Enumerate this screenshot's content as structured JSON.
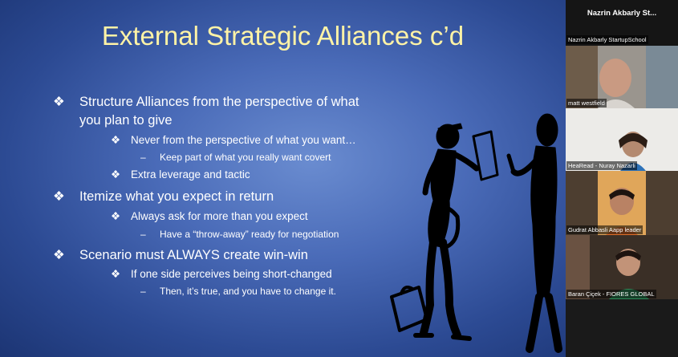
{
  "slide": {
    "title": "External Strategic Alliances c’d",
    "bullets": [
      {
        "level": 1,
        "line1": "Structure Alliances from the perspective of what",
        "line2": "you plan to give"
      },
      {
        "level": 2,
        "text": "Never from the perspective of what you want…"
      },
      {
        "level": 3,
        "text": "Keep part of what you really want covert"
      },
      {
        "level": 2,
        "text": "Extra leverage and tactic"
      },
      {
        "level": 1,
        "text": "Itemize what you expect in return"
      },
      {
        "level": 2,
        "text": "Always ask for more than you expect"
      },
      {
        "level": 3,
        "text": "Have a “throw-away” ready for negotiation"
      },
      {
        "level": 1,
        "text": "Scenario  must ALWAYS create win-win"
      },
      {
        "level": 2,
        "text": "If one side perceives  being short-changed"
      },
      {
        "level": 3,
        "text": "Then, it’s true, and you have to change it."
      }
    ],
    "bullet_glyph_l1": "❖",
    "bullet_glyph_l2": "❖",
    "bullet_glyph_l3": "–"
  },
  "participants": {
    "host": {
      "name": "Nazrin Akbarly St...",
      "label": "Nazrin Akbarly StartupSchool"
    },
    "tiles": [
      {
        "label": "matt westfield",
        "bg": "#b8b4ae"
      },
      {
        "label": "HeaRead - Nuray Nazarli",
        "bg": "#e8e6e2"
      },
      {
        "label": "Gudrat Abbasli Aapp leader",
        "bg": "#5a4a3a"
      },
      {
        "label": "Baran Çiçek - FIORES GLOBAL",
        "bg": "#3a2f26"
      }
    ]
  }
}
